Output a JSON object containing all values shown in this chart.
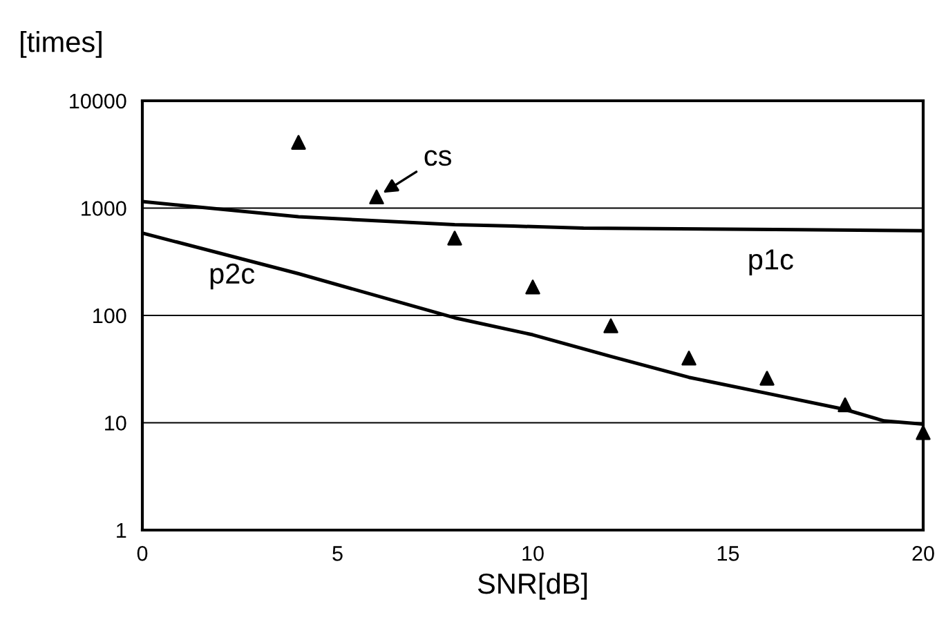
{
  "chart_data": {
    "type": "line",
    "xlabel": "SNR[dB]",
    "ylabel": "[times]",
    "log": "y",
    "xlim": [
      0,
      20
    ],
    "xticks": [
      0,
      5,
      10,
      15,
      20
    ],
    "ylim": [
      1,
      10000
    ],
    "yticks": [
      1,
      10,
      100,
      1000,
      10000
    ],
    "grid": "y",
    "legend": false,
    "series": [
      {
        "name": "cs",
        "type": "scatter",
        "marker": "triangle",
        "color": "#000000",
        "x": [
          4,
          6,
          8,
          10,
          12,
          14,
          16,
          18,
          20
        ],
        "values": [
          4100,
          1270,
          525,
          184,
          80,
          40,
          26,
          14.7,
          8.1
        ]
      },
      {
        "name": "p1c",
        "marker": "none",
        "line_style": "solid",
        "color": "#000000",
        "x": [
          0,
          4,
          8,
          9.5,
          11.3,
          16.8,
          20
        ],
        "values": [
          1150,
          830,
          700,
          680,
          650,
          630,
          615
        ]
      },
      {
        "name": "p2c",
        "marker": "none",
        "line_style": "solid",
        "color": "#000000",
        "x": [
          0,
          4,
          8,
          10,
          12,
          14,
          16,
          18,
          19,
          20
        ],
        "values": [
          585,
          245,
          95,
          66,
          41.5,
          26.5,
          18.8,
          13.3,
          10.4,
          9.7
        ]
      }
    ]
  }
}
